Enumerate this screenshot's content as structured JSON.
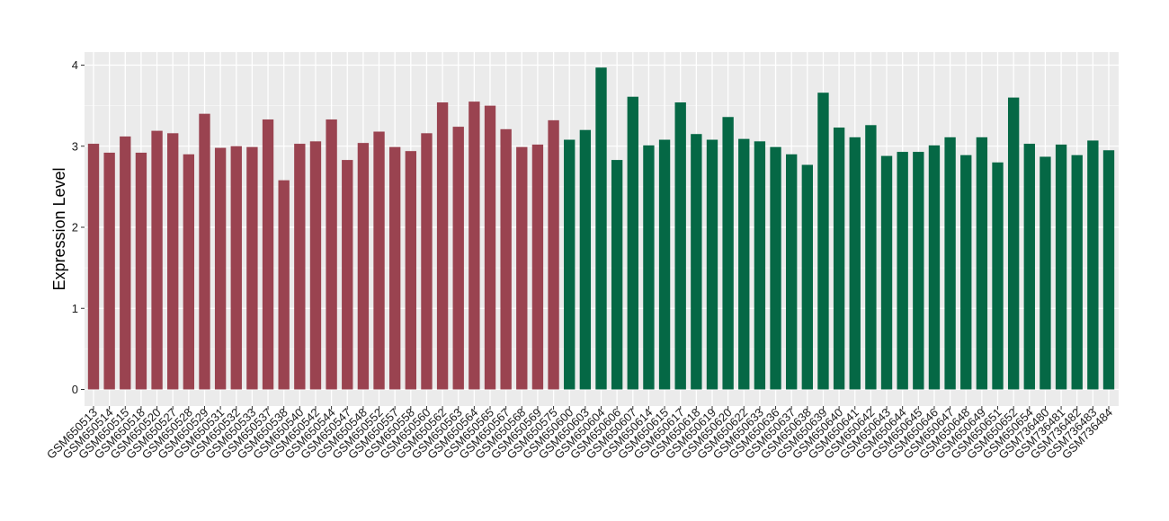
{
  "chart_data": {
    "type": "bar",
    "title": "",
    "xlabel": "",
    "ylabel": "Expression Level",
    "ylim": [
      -0.15,
      4.1
    ],
    "yticks": [
      0,
      1,
      2,
      3,
      4
    ],
    "grid": true,
    "legend": "none",
    "colors": {
      "group1": "#9a4350",
      "group2": "#056845",
      "panel": "#ebebeb",
      "grid": "#ffffff"
    },
    "categories": [
      "GSM650513",
      "GSM650514",
      "GSM650515",
      "GSM650518",
      "GSM650520",
      "GSM650527",
      "GSM650528",
      "GSM650529",
      "GSM650531",
      "GSM650532",
      "GSM650533",
      "GSM650537",
      "GSM650538",
      "GSM650540",
      "GSM650542",
      "GSM650544",
      "GSM650547",
      "GSM650548",
      "GSM650552",
      "GSM650557",
      "GSM650558",
      "GSM650560",
      "GSM650562",
      "GSM650563",
      "GSM650564",
      "GSM650565",
      "GSM650567",
      "GSM650568",
      "GSM650569",
      "GSM650575",
      "GSM650600",
      "GSM650603",
      "GSM650604",
      "GSM650606",
      "GSM650607",
      "GSM650614",
      "GSM650615",
      "GSM650617",
      "GSM650618",
      "GSM650619",
      "GSM650620",
      "GSM650622",
      "GSM650633",
      "GSM650636",
      "GSM650637",
      "GSM650638",
      "GSM650639",
      "GSM650640",
      "GSM650641",
      "GSM650642",
      "GSM650643",
      "GSM650644",
      "GSM650645",
      "GSM650646",
      "GSM650647",
      "GSM650648",
      "GSM650649",
      "GSM650651",
      "GSM650652",
      "GSM650654",
      "GSM736480",
      "GSM736481",
      "GSM736482",
      "GSM736483",
      "GSM736484"
    ],
    "values": [
      3.03,
      2.92,
      3.12,
      2.92,
      3.19,
      3.16,
      2.9,
      3.4,
      2.98,
      3.0,
      2.99,
      3.33,
      2.58,
      3.03,
      3.06,
      3.33,
      2.83,
      3.04,
      3.18,
      2.99,
      2.94,
      3.16,
      3.54,
      3.24,
      3.55,
      3.5,
      3.21,
      2.99,
      3.02,
      3.32,
      3.08,
      3.2,
      3.97,
      2.83,
      3.61,
      3.01,
      3.08,
      3.54,
      3.15,
      3.08,
      3.36,
      3.09,
      3.06,
      2.99,
      2.9,
      2.77,
      3.66,
      3.23,
      3.11,
      3.26,
      2.88,
      2.93,
      2.93,
      3.01,
      3.11,
      2.89,
      3.11,
      2.8,
      3.6,
      3.03,
      2.87,
      3.02,
      2.89,
      3.07,
      2.95
    ],
    "groups": [
      1,
      1,
      1,
      1,
      1,
      1,
      1,
      1,
      1,
      1,
      1,
      1,
      1,
      1,
      1,
      1,
      1,
      1,
      1,
      1,
      1,
      1,
      1,
      1,
      1,
      1,
      1,
      1,
      1,
      1,
      2,
      2,
      2,
      2,
      2,
      2,
      2,
      2,
      2,
      2,
      2,
      2,
      2,
      2,
      2,
      2,
      2,
      2,
      2,
      2,
      2,
      2,
      2,
      2,
      2,
      2,
      2,
      2,
      2,
      2,
      2,
      2,
      2,
      2,
      2
    ]
  }
}
